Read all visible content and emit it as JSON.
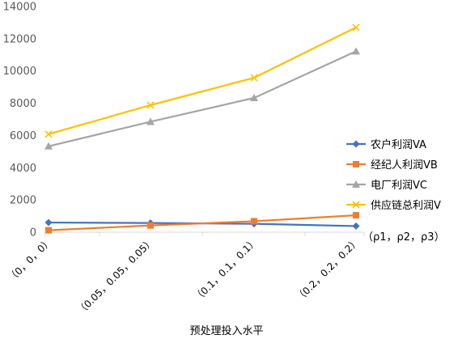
{
  "chart_data": {
    "type": "line",
    "categories": [
      "（0，0，0）",
      "（0.05，0.05，0.05）",
      "（0.1，0.1，0.1）",
      "（0.2，0.2，0.2）"
    ],
    "xlabel": "预处理投入水平",
    "ylabel": "",
    "ylim": [
      0,
      14000
    ],
    "yticks": [
      0,
      2000,
      4000,
      6000,
      8000,
      10000,
      12000,
      14000
    ],
    "grid": false,
    "legend_position": "right",
    "annotation": "（ρ1，ρ2，ρ3）",
    "series": [
      {
        "name": "农户利润VA",
        "color": "#4472C4",
        "marker": "diamond",
        "values": [
          600,
          570,
          520,
          380
        ]
      },
      {
        "name": "经纪人利润VB",
        "color": "#ED7D31",
        "marker": "square",
        "values": [
          120,
          420,
          680,
          1050
        ]
      },
      {
        "name": "电厂利润VC",
        "color": "#A5A5A5",
        "marker": "triangle",
        "values": [
          5330,
          6850,
          8330,
          11220
        ]
      },
      {
        "name": "供应链总利润V",
        "color": "#FFC000",
        "marker": "x",
        "values": [
          6080,
          7880,
          9580,
          12700
        ]
      }
    ]
  }
}
